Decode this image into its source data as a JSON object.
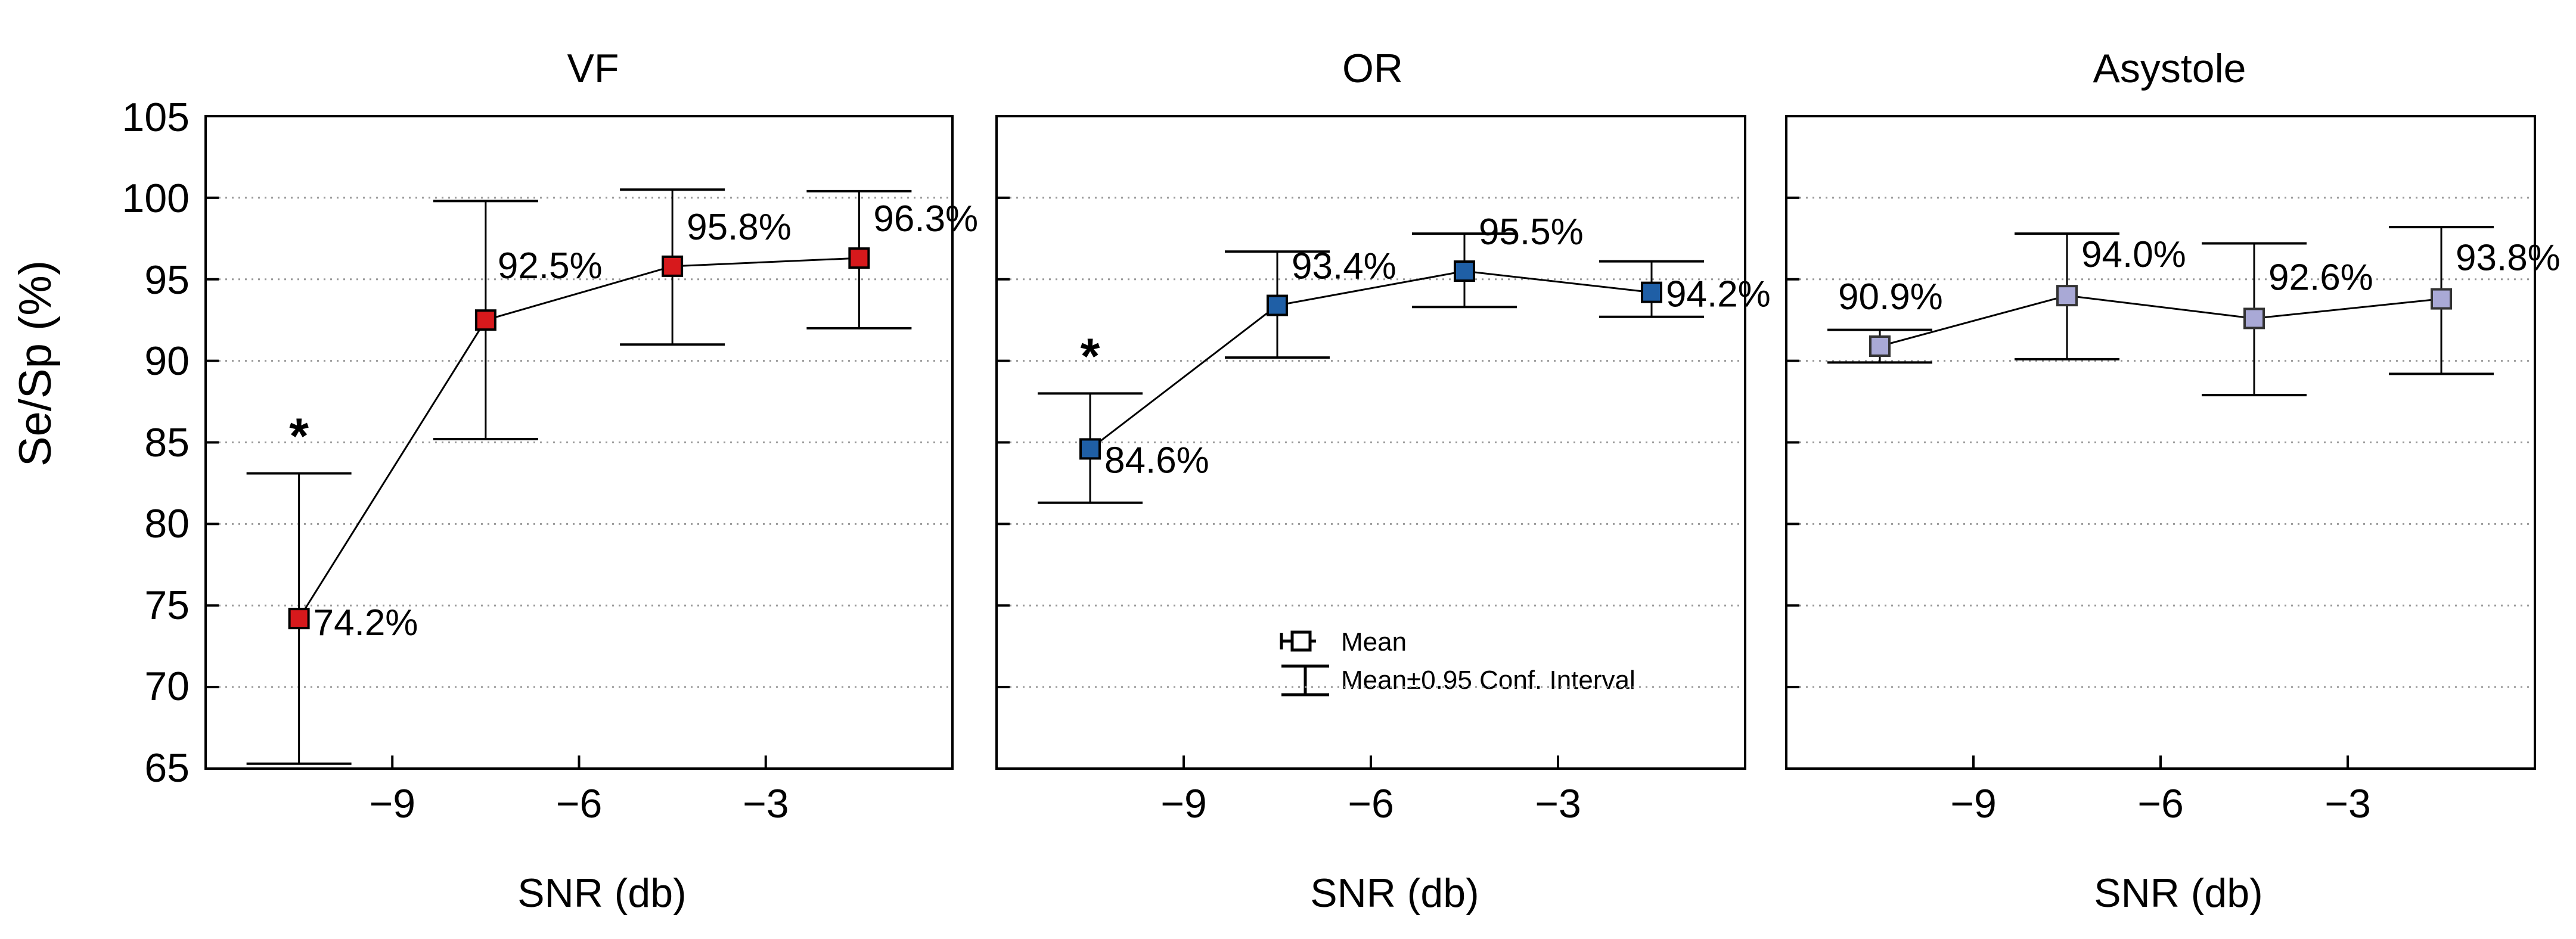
{
  "figure": {
    "ylabel": "Se/Sp (%)",
    "yticks": [
      "65",
      "70",
      "75",
      "80",
      "85",
      "90",
      "95",
      "100",
      "105"
    ],
    "xticks": [
      "−9",
      "−6",
      "−3"
    ],
    "legend": {
      "mean_label": "Mean",
      "ci_label": "Mean±0.95 Conf. Interval"
    }
  },
  "chart_data": [
    {
      "type": "line",
      "title": "VF",
      "xlabel": "SNR (db)",
      "ylabel": "Se/Sp (%)",
      "xlim": [
        -12,
        0
      ],
      "ylim": [
        65,
        105
      ],
      "x": [
        -10.5,
        -7.5,
        -4.5,
        -1.5
      ],
      "values": [
        74.2,
        92.5,
        95.8,
        96.3
      ],
      "ci_low": [
        65.3,
        85.2,
        91.0,
        92.0
      ],
      "ci_high": [
        83.1,
        99.8,
        100.5,
        100.4
      ],
      "labels": [
        "74.2%",
        "92.5%",
        "95.8%",
        "96.3%"
      ],
      "significant": [
        true,
        false,
        false,
        false
      ],
      "marker_color": "#d7191c",
      "marker_stroke": "#000000"
    },
    {
      "type": "line",
      "title": "OR",
      "xlabel": "SNR (db)",
      "ylabel": "Se/Sp (%)",
      "xlim": [
        -12,
        0
      ],
      "ylim": [
        65,
        105
      ],
      "x": [
        -10.5,
        -7.5,
        -4.5,
        -1.5
      ],
      "values": [
        84.6,
        93.4,
        95.5,
        94.2
      ],
      "ci_low": [
        81.3,
        90.2,
        93.3,
        92.7
      ],
      "ci_high": [
        88.0,
        96.7,
        97.8,
        96.1
      ],
      "labels": [
        "84.6%",
        "93.4%",
        "95.5%",
        "94.2%"
      ],
      "significant": [
        true,
        false,
        false,
        false
      ],
      "marker_color": "#1f5fa6",
      "marker_stroke": "#000000"
    },
    {
      "type": "line",
      "title": "Asystole",
      "xlabel": "SNR (db)",
      "ylabel": "Se/Sp (%)",
      "xlim": [
        -12,
        0
      ],
      "ylim": [
        65,
        105
      ],
      "x": [
        -10.5,
        -7.5,
        -4.5,
        -1.5
      ],
      "values": [
        90.9,
        94.0,
        92.6,
        93.8
      ],
      "ci_low": [
        89.9,
        90.1,
        87.9,
        89.2
      ],
      "ci_high": [
        91.9,
        97.8,
        97.2,
        98.2
      ],
      "labels": [
        "90.9%",
        "94.0%",
        "92.6%",
        "93.8%"
      ],
      "significant": [
        false,
        false,
        false,
        false
      ],
      "marker_color": "#a9a9d6",
      "marker_stroke": "#333333"
    }
  ]
}
